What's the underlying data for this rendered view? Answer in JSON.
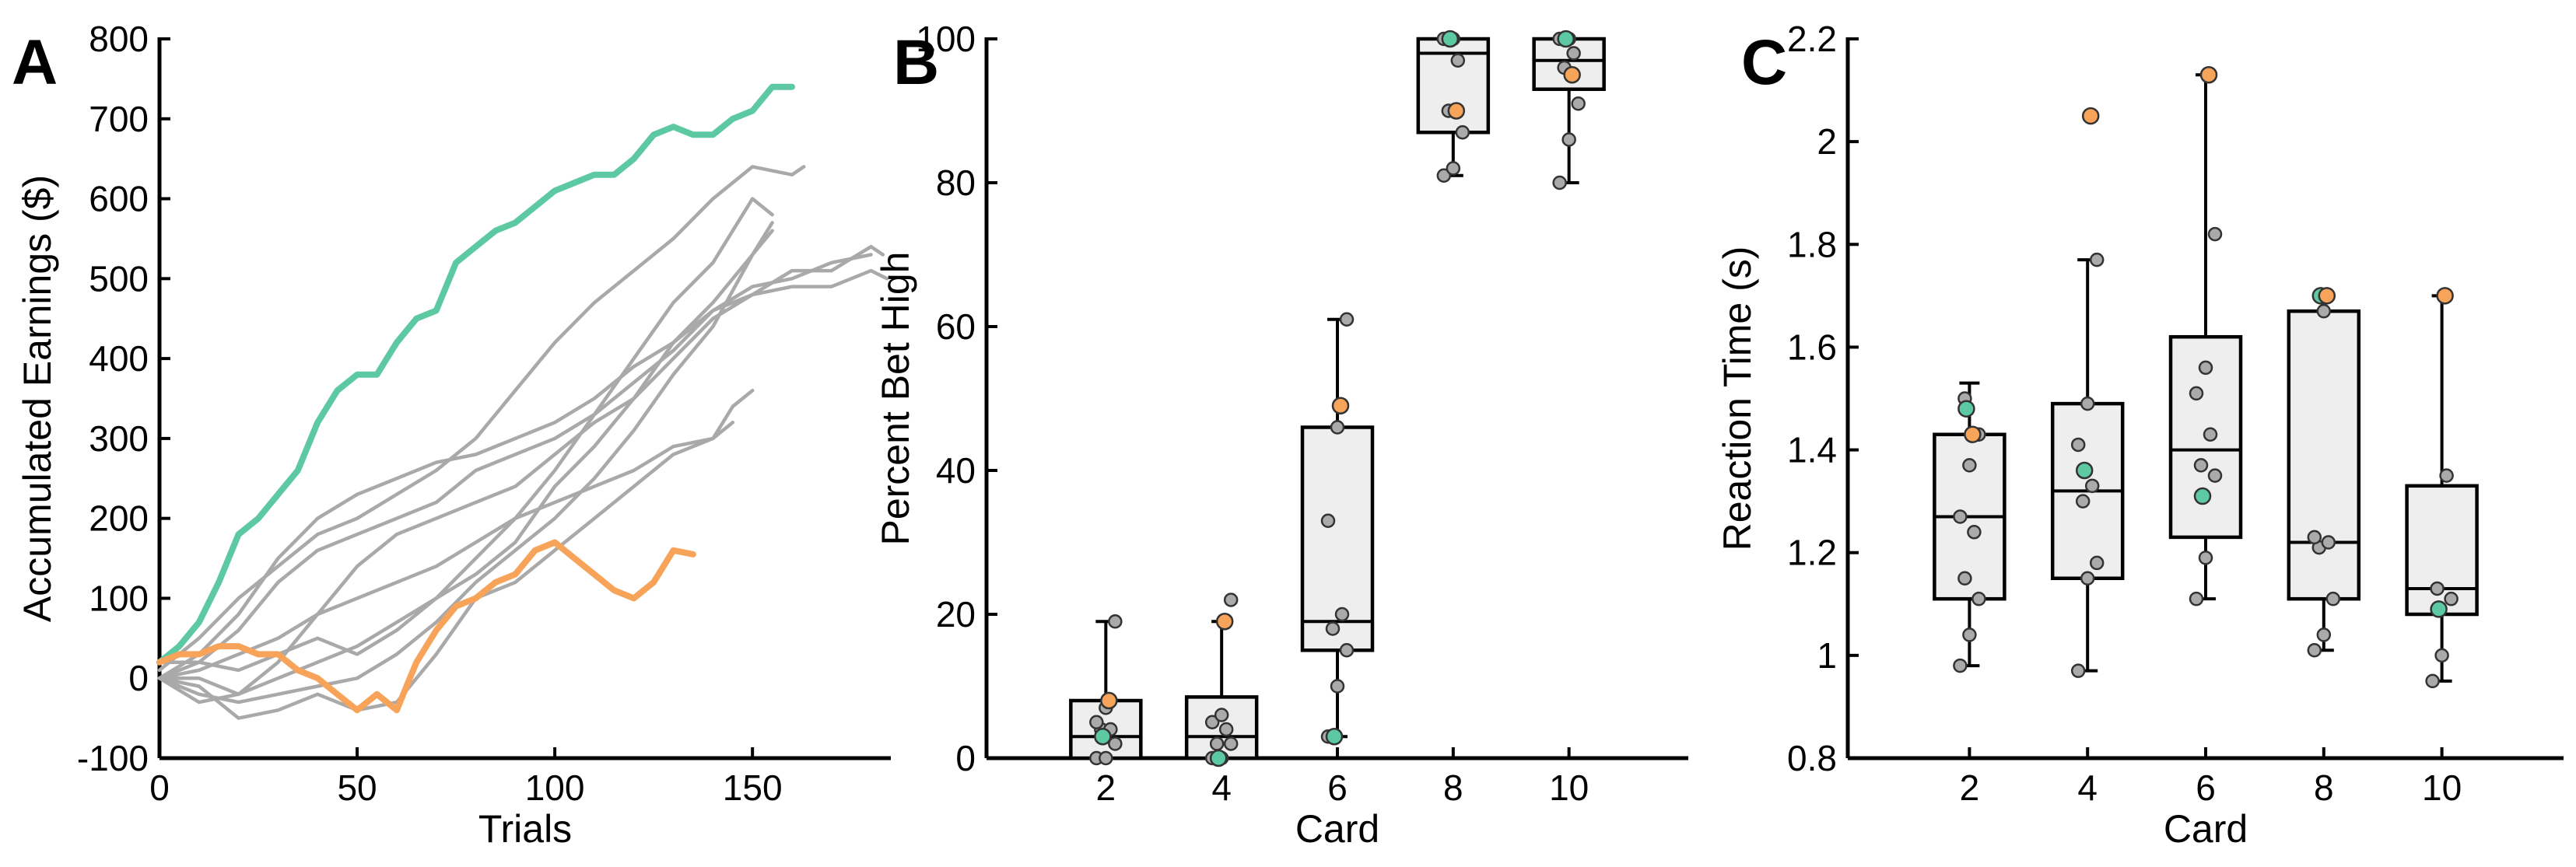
{
  "chart_data": [
    {
      "panel": "A",
      "type": "line",
      "title": "",
      "xlabel": "Trials",
      "ylabel": "Accumulated Earnings ($)",
      "xlim": [
        0,
        185
      ],
      "ylim": [
        -100,
        800
      ],
      "xticks": [
        0,
        50,
        100,
        150
      ],
      "yticks": [
        -100,
        0,
        100,
        200,
        300,
        400,
        500,
        600,
        700,
        800
      ],
      "xtick_labels": [
        "0",
        "50",
        "100",
        "150"
      ],
      "ytick_labels": [
        "-100",
        "0",
        "100",
        "200",
        "300",
        "400",
        "500",
        "600",
        "700",
        "800"
      ],
      "colors": {
        "green": "#5dc9a3",
        "orange": "#f8a35a",
        "gray": "#a9a9a9"
      },
      "series": [
        {
          "name": "gray-1",
          "color": "gray",
          "x": [
            0,
            10,
            20,
            30,
            40,
            50,
            60,
            70,
            80,
            90,
            100,
            110,
            120,
            130,
            140,
            150,
            160,
            170,
            180
          ],
          "y": [
            0,
            30,
            80,
            150,
            200,
            230,
            250,
            270,
            280,
            300,
            320,
            350,
            390,
            420,
            460,
            490,
            500,
            520,
            530
          ]
        },
        {
          "name": "gray-2",
          "color": "gray",
          "x": [
            0,
            10,
            20,
            30,
            40,
            50,
            60,
            70,
            80,
            90,
            100,
            110,
            120,
            130,
            140,
            150,
            160,
            170,
            180,
            183
          ],
          "y": [
            20,
            20,
            60,
            120,
            160,
            180,
            200,
            220,
            260,
            280,
            300,
            330,
            370,
            410,
            460,
            480,
            510,
            510,
            540,
            530
          ]
        },
        {
          "name": "gray-3",
          "color": "gray",
          "x": [
            0,
            10,
            20,
            30,
            40,
            50,
            60,
            70,
            80,
            90,
            100,
            110,
            120,
            130,
            140,
            150,
            160,
            163
          ],
          "y": [
            10,
            50,
            100,
            140,
            180,
            200,
            230,
            260,
            300,
            360,
            420,
            470,
            510,
            550,
            600,
            640,
            630,
            640
          ]
        },
        {
          "name": "gray-4",
          "color": "gray",
          "x": [
            0,
            10,
            20,
            30,
            40,
            50,
            60,
            70,
            80,
            90,
            100,
            110,
            120,
            130,
            140,
            150,
            160,
            170,
            180,
            184
          ],
          "y": [
            0,
            0,
            -20,
            20,
            80,
            140,
            180,
            200,
            220,
            240,
            280,
            320,
            350,
            400,
            450,
            480,
            490,
            490,
            510,
            500
          ]
        },
        {
          "name": "gray-5",
          "color": "gray",
          "x": [
            0,
            10,
            20,
            30,
            40,
            50,
            60,
            70,
            80,
            90,
            100,
            110,
            120,
            130,
            140,
            150,
            155
          ],
          "y": [
            0,
            -30,
            -20,
            0,
            20,
            40,
            70,
            100,
            150,
            200,
            260,
            330,
            400,
            470,
            520,
            600,
            580
          ]
        },
        {
          "name": "gray-6",
          "color": "gray",
          "x": [
            0,
            10,
            20,
            30,
            40,
            50,
            60,
            70,
            80,
            90,
            100,
            110,
            120,
            130,
            140,
            150,
            155
          ],
          "y": [
            0,
            -20,
            -30,
            -20,
            -10,
            0,
            30,
            70,
            120,
            160,
            200,
            250,
            310,
            380,
            440,
            530,
            570
          ]
        },
        {
          "name": "gray-7",
          "color": "gray",
          "x": [
            0,
            10,
            20,
            30,
            40,
            50,
            60,
            70,
            80,
            90,
            100,
            110,
            120,
            130,
            140,
            145,
            150
          ],
          "y": [
            0,
            -10,
            -50,
            -40,
            -20,
            -40,
            -30,
            30,
            100,
            120,
            160,
            200,
            240,
            280,
            300,
            340,
            360
          ]
        },
        {
          "name": "gray-8",
          "color": "gray",
          "x": [
            0,
            10,
            20,
            30,
            40,
            50,
            60,
            70,
            80,
            90,
            100,
            110,
            120,
            130,
            140,
            145
          ],
          "y": [
            0,
            10,
            30,
            50,
            80,
            100,
            120,
            140,
            170,
            200,
            220,
            240,
            260,
            290,
            300,
            320
          ]
        },
        {
          "name": "gray-9",
          "color": "gray",
          "x": [
            0,
            10,
            20,
            30,
            40,
            50,
            60,
            70,
            80,
            90,
            100,
            110,
            120,
            130,
            140,
            150,
            155
          ],
          "y": [
            0,
            20,
            10,
            30,
            50,
            30,
            60,
            100,
            130,
            170,
            240,
            290,
            350,
            420,
            470,
            530,
            560
          ]
        },
        {
          "name": "green",
          "color": "green",
          "x": [
            0,
            5,
            10,
            15,
            20,
            25,
            30,
            35,
            40,
            45,
            50,
            55,
            60,
            65,
            70,
            75,
            80,
            85,
            90,
            95,
            100,
            105,
            110,
            115,
            120,
            125,
            130,
            135,
            140,
            145,
            150,
            155,
            160
          ],
          "y": [
            20,
            40,
            70,
            120,
            180,
            200,
            230,
            260,
            320,
            360,
            380,
            380,
            420,
            450,
            460,
            520,
            540,
            560,
            570,
            590,
            610,
            620,
            630,
            630,
            650,
            680,
            690,
            680,
            680,
            700,
            710,
            740,
            740
          ]
        },
        {
          "name": "orange",
          "color": "orange",
          "x": [
            0,
            5,
            10,
            15,
            20,
            25,
            30,
            35,
            40,
            45,
            50,
            55,
            60,
            65,
            70,
            75,
            80,
            85,
            90,
            95,
            100,
            105,
            110,
            115,
            120,
            125,
            130,
            135
          ],
          "y": [
            20,
            30,
            30,
            40,
            40,
            30,
            30,
            10,
            0,
            -20,
            -40,
            -20,
            -40,
            20,
            60,
            90,
            100,
            120,
            130,
            160,
            170,
            150,
            130,
            110,
            100,
            120,
            160,
            155
          ]
        }
      ]
    },
    {
      "panel": "B",
      "type": "box",
      "title": "",
      "xlabel": "Card",
      "ylabel": "Percent Bet High",
      "ylim": [
        0,
        100
      ],
      "yticks": [
        0,
        20,
        40,
        60,
        80,
        100
      ],
      "ytick_labels": [
        "0",
        "20",
        "40",
        "60",
        "80",
        "100"
      ],
      "categories": [
        "2",
        "4",
        "6",
        "8",
        "10"
      ],
      "boxes": [
        {
          "category": "2",
          "whisker_low": 0,
          "q1": 0,
          "median": 3,
          "q3": 8,
          "whisker_high": 19,
          "points": [
            0,
            0,
            2,
            4,
            4,
            5,
            7,
            19
          ],
          "highlight": {
            "green": 3,
            "orange": 8
          }
        },
        {
          "category": "4",
          "whisker_low": 0,
          "q1": 0,
          "median": 3,
          "q3": 8.5,
          "whisker_high": 19,
          "points": [
            0,
            0,
            2,
            2,
            4,
            5,
            6,
            22
          ],
          "highlight": {
            "green": 0,
            "orange": 19
          }
        },
        {
          "category": "6",
          "whisker_low": 3,
          "q1": 15,
          "median": 19,
          "q3": 46,
          "whisker_high": 61,
          "points": [
            3,
            10,
            15,
            18,
            20,
            33,
            46,
            61
          ],
          "highlight": {
            "green": 3,
            "orange": 49
          }
        },
        {
          "category": "8",
          "whisker_low": 81,
          "q1": 87,
          "median": 98,
          "q3": 100,
          "whisker_high": 100,
          "points": [
            81,
            82,
            87,
            90,
            97,
            100,
            100
          ],
          "highlight": {
            "green": 100,
            "orange": 90
          }
        },
        {
          "category": "10",
          "whisker_low": 80,
          "q1": 93,
          "median": 97,
          "q3": 100,
          "whisker_high": 100,
          "points": [
            80,
            86,
            91,
            96,
            98,
            100,
            100
          ],
          "highlight": {
            "green": 100,
            "orange": 95
          }
        }
      ]
    },
    {
      "panel": "C",
      "type": "box",
      "title": "",
      "xlabel": "Card",
      "ylabel": "Reaction Time (s)",
      "ylim": [
        0.8,
        2.2
      ],
      "yticks": [
        0.8,
        1,
        1.2,
        1.4,
        1.6,
        1.8,
        2,
        2.2
      ],
      "ytick_labels": [
        "0.8",
        "1",
        "1.2",
        "1.4",
        "1.6",
        "1.8",
        "2",
        "2.2"
      ],
      "categories": [
        "2",
        "4",
        "6",
        "8",
        "10"
      ],
      "boxes": [
        {
          "category": "2",
          "whisker_low": 0.98,
          "q1": 1.11,
          "median": 1.27,
          "q3": 1.43,
          "whisker_high": 1.53,
          "points": [
            0.98,
            1.04,
            1.11,
            1.15,
            1.24,
            1.27,
            1.37,
            1.43,
            1.5
          ],
          "highlight": {
            "green": 1.48,
            "orange": 1.43
          }
        },
        {
          "category": "4",
          "whisker_low": 0.97,
          "q1": 1.15,
          "median": 1.32,
          "q3": 1.49,
          "whisker_high": 1.77,
          "points": [
            0.97,
            1.15,
            1.18,
            1.3,
            1.33,
            1.41,
            1.49,
            1.77
          ],
          "highlight": {
            "green": 1.36,
            "orange": 2.05
          }
        },
        {
          "category": "6",
          "whisker_low": 1.11,
          "q1": 1.23,
          "median": 1.4,
          "q3": 1.62,
          "whisker_high": 2.13,
          "points": [
            1.11,
            1.19,
            1.35,
            1.37,
            1.43,
            1.51,
            1.56,
            1.82
          ],
          "highlight": {
            "green": 1.31,
            "orange": 2.13
          }
        },
        {
          "category": "8",
          "whisker_low": 1.01,
          "q1": 1.11,
          "median": 1.22,
          "q3": 1.67,
          "whisker_high": 1.7,
          "points": [
            1.01,
            1.04,
            1.11,
            1.21,
            1.22,
            1.23,
            1.67
          ],
          "highlight": {
            "green": 1.7,
            "orange": 1.7
          }
        },
        {
          "category": "10",
          "whisker_low": 0.95,
          "q1": 1.08,
          "median": 1.13,
          "q3": 1.33,
          "whisker_high": 1.7,
          "points": [
            0.95,
            1.0,
            1.11,
            1.13,
            1.35
          ],
          "highlight": {
            "green": 1.09,
            "orange": 1.7
          }
        }
      ]
    }
  ]
}
